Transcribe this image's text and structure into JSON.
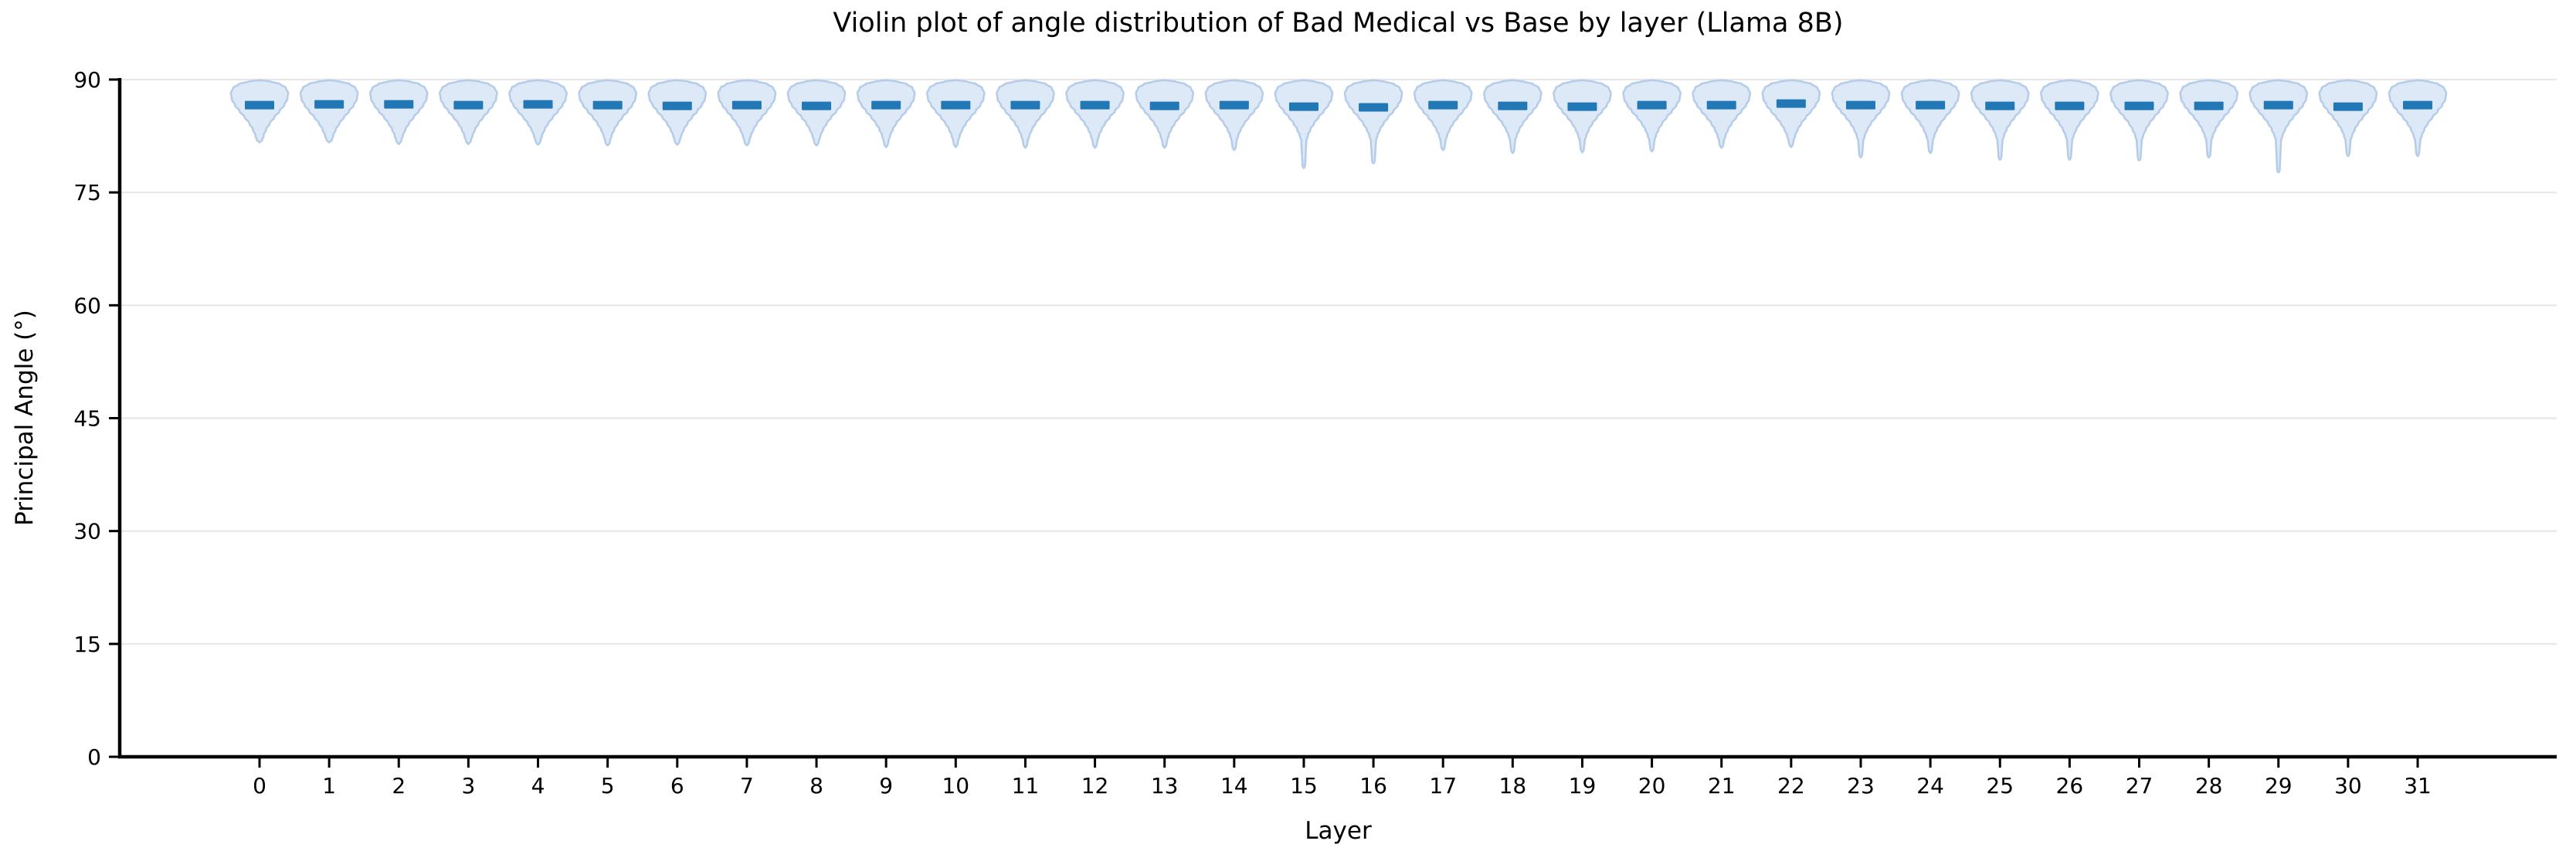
{
  "figure": {
    "background": "#ffffff"
  },
  "chart_data": {
    "type": "violin",
    "title": "Violin plot of angle distribution of Bad Medical vs Base by layer (Llama 8B)",
    "xlabel": "Layer",
    "ylabel": "Principal Angle (°)",
    "ylim": [
      0,
      90
    ],
    "yticks": [
      0,
      15,
      30,
      45,
      60,
      75,
      90
    ],
    "categories": [
      0,
      1,
      2,
      3,
      4,
      5,
      6,
      7,
      8,
      9,
      10,
      11,
      12,
      13,
      14,
      15,
      16,
      17,
      18,
      19,
      20,
      21,
      22,
      23,
      24,
      25,
      26,
      27,
      28,
      29,
      30,
      31
    ],
    "grid": true,
    "legend_position": "none",
    "colors": {
      "violin_fill": "#dde9f6",
      "violin_edge": "#b6cde9",
      "median": "#2178b5",
      "gridline": "#e7e7eb",
      "axis": "#000000",
      "text": "#000000"
    },
    "violins": [
      {
        "layer": 0,
        "min": 81.6,
        "median": 86.6,
        "max": 89.9
      },
      {
        "layer": 1,
        "min": 81.6,
        "median": 86.7,
        "max": 89.9
      },
      {
        "layer": 2,
        "min": 81.4,
        "median": 86.7,
        "max": 89.9
      },
      {
        "layer": 3,
        "min": 81.4,
        "median": 86.6,
        "max": 89.9
      },
      {
        "layer": 4,
        "min": 81.3,
        "median": 86.7,
        "max": 89.9
      },
      {
        "layer": 5,
        "min": 81.2,
        "median": 86.6,
        "max": 89.9
      },
      {
        "layer": 6,
        "min": 81.3,
        "median": 86.5,
        "max": 89.9
      },
      {
        "layer": 7,
        "min": 81.2,
        "median": 86.6,
        "max": 89.9
      },
      {
        "layer": 8,
        "min": 81.2,
        "median": 86.5,
        "max": 89.9
      },
      {
        "layer": 9,
        "min": 81.0,
        "median": 86.6,
        "max": 89.9
      },
      {
        "layer": 10,
        "min": 81.0,
        "median": 86.6,
        "max": 89.9
      },
      {
        "layer": 11,
        "min": 80.9,
        "median": 86.6,
        "max": 89.9
      },
      {
        "layer": 12,
        "min": 80.9,
        "median": 86.6,
        "max": 89.9
      },
      {
        "layer": 13,
        "min": 80.9,
        "median": 86.5,
        "max": 89.9
      },
      {
        "layer": 14,
        "min": 80.6,
        "median": 86.6,
        "max": 89.9
      },
      {
        "layer": 15,
        "min": 78.2,
        "median": 86.4,
        "max": 89.9
      },
      {
        "layer": 16,
        "min": 78.8,
        "median": 86.3,
        "max": 89.9
      },
      {
        "layer": 17,
        "min": 80.6,
        "median": 86.6,
        "max": 89.9
      },
      {
        "layer": 18,
        "min": 80.2,
        "median": 86.5,
        "max": 89.9
      },
      {
        "layer": 19,
        "min": 80.3,
        "median": 86.4,
        "max": 89.9
      },
      {
        "layer": 20,
        "min": 80.4,
        "median": 86.6,
        "max": 89.9
      },
      {
        "layer": 21,
        "min": 80.9,
        "median": 86.6,
        "max": 89.9
      },
      {
        "layer": 22,
        "min": 81.0,
        "median": 86.8,
        "max": 89.9
      },
      {
        "layer": 23,
        "min": 79.6,
        "median": 86.6,
        "max": 89.9
      },
      {
        "layer": 24,
        "min": 80.2,
        "median": 86.6,
        "max": 89.9
      },
      {
        "layer": 25,
        "min": 79.3,
        "median": 86.5,
        "max": 89.9
      },
      {
        "layer": 26,
        "min": 79.3,
        "median": 86.5,
        "max": 89.9
      },
      {
        "layer": 27,
        "min": 79.2,
        "median": 86.5,
        "max": 89.9
      },
      {
        "layer": 28,
        "min": 79.6,
        "median": 86.5,
        "max": 89.9
      },
      {
        "layer": 29,
        "min": 77.6,
        "median": 86.6,
        "max": 89.9
      },
      {
        "layer": 30,
        "min": 79.8,
        "median": 86.4,
        "max": 89.9
      },
      {
        "layer": 31,
        "min": 79.8,
        "median": 86.6,
        "max": 89.9
      }
    ]
  }
}
